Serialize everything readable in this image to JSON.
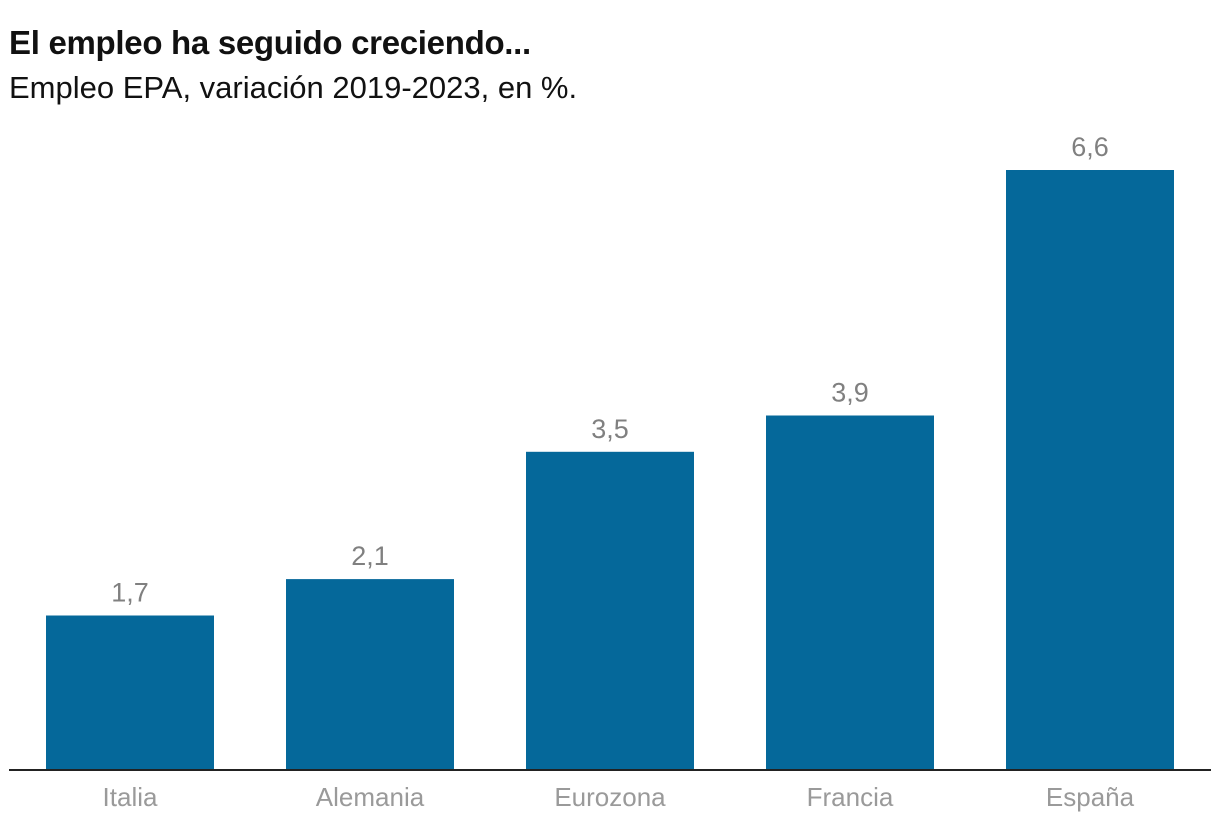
{
  "chart_data": {
    "type": "bar",
    "title": "El empleo ha seguido creciendo...",
    "subtitle": "Empleo EPA, variación 2019-2023, en %.",
    "categories": [
      "Italia",
      "Alemania",
      "Eurozona",
      "Francia",
      "España"
    ],
    "values": [
      1.7,
      2.1,
      3.5,
      3.9,
      6.6
    ],
    "value_labels": [
      "1,7",
      "2,1",
      "3,5",
      "3,9",
      "6,6"
    ],
    "bar_color": "#05689a",
    "xlabel": "",
    "ylabel": "",
    "ylim": [
      0,
      6.6
    ],
    "grid": false
  }
}
